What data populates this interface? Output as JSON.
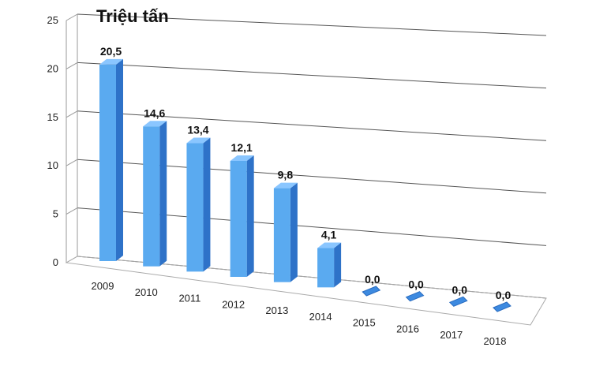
{
  "chart_data": {
    "type": "bar",
    "unit_label": "Triệu tấn",
    "categories": [
      "2009",
      "2010",
      "2011",
      "2012",
      "2013",
      "2014",
      "2015",
      "2016",
      "2017",
      "2018"
    ],
    "values": [
      20.5,
      14.6,
      13.4,
      12.1,
      9.8,
      4.1,
      0.0,
      0.0,
      0.0,
      0.0
    ],
    "value_labels": [
      "20,5",
      "14,6",
      "13,4",
      "12,1",
      "9,8",
      "4,1",
      "0,0",
      "0,0",
      "0,0",
      "0,0"
    ],
    "y_ticks": [
      "0",
      "5",
      "10",
      "15",
      "20",
      "25"
    ],
    "ylim": [
      0,
      25
    ],
    "grid": true,
    "style": "3d-column",
    "colors": {
      "bar_front": "#5aaaf0",
      "bar_side": "#2e72c8",
      "bar_top": "#8ac6ff",
      "grid": "#555555"
    }
  }
}
